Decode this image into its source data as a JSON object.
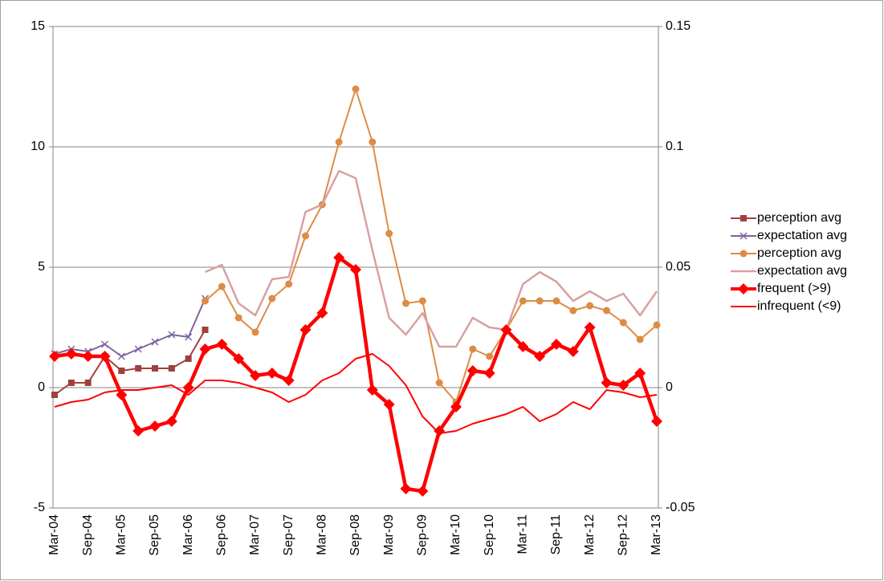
{
  "chart_data": {
    "type": "line",
    "categories": [
      "Mar-04",
      null,
      "Sep-04",
      null,
      "Mar-05",
      null,
      "Sep-05",
      null,
      "Mar-06",
      null,
      "Sep-06",
      null,
      "Mar-07",
      null,
      "Sep-07",
      null,
      "Mar-08",
      null,
      "Sep-08",
      null,
      "Mar-09",
      null,
      "Sep-09",
      null,
      "Mar-10",
      null,
      "Sep-10",
      null,
      "Mar-11",
      null,
      "Sep-11",
      null,
      "Mar-12",
      null,
      "Sep-12",
      null,
      "Mar-13"
    ],
    "ylim": [
      -5,
      15
    ],
    "yticks": [
      15,
      10,
      5,
      0,
      -5
    ],
    "y2lim": [
      -0.05,
      0.15
    ],
    "y2ticks": [
      0.15,
      0.1,
      0.05,
      0,
      -0.05
    ],
    "grid": true,
    "legend": "right",
    "series": [
      {
        "name": "perception avg",
        "color": "#9e413e",
        "marker": "square",
        "line_width": 2,
        "values": [
          -0.3,
          0.2,
          0.2,
          1.3,
          0.7,
          0.8,
          0.8,
          0.8,
          1.2,
          2.4,
          null,
          null,
          null,
          null,
          null,
          null,
          null,
          null,
          null,
          null,
          null,
          null,
          null,
          null,
          null,
          null,
          null,
          null,
          null,
          null,
          null,
          null,
          null,
          null,
          null,
          null,
          null
        ]
      },
      {
        "name": "expectation avg",
        "color": "#7e649e",
        "marker": "x",
        "line_width": 2,
        "values": [
          1.4,
          1.6,
          1.5,
          1.8,
          1.3,
          1.6,
          1.9,
          2.2,
          2.1,
          3.7,
          null,
          null,
          null,
          null,
          null,
          null,
          null,
          null,
          null,
          null,
          null,
          null,
          null,
          null,
          null,
          null,
          null,
          null,
          null,
          null,
          null,
          null,
          null,
          null,
          null,
          null,
          null
        ]
      },
      {
        "name": "perception avg",
        "color": "#dd8c45",
        "marker": "circle",
        "line_width": 2,
        "values": [
          null,
          null,
          null,
          null,
          null,
          null,
          null,
          null,
          null,
          3.6,
          4.2,
          2.9,
          2.3,
          3.7,
          4.3,
          6.3,
          7.6,
          10.2,
          12.4,
          10.2,
          6.4,
          3.5,
          3.6,
          0.2,
          -0.6,
          1.6,
          1.3,
          2.4,
          3.6,
          3.6,
          3.6,
          3.2,
          3.4,
          3.2,
          2.7,
          2.0,
          2.6
        ]
      },
      {
        "name": "expectation avg",
        "color": "#d9a0a0",
        "marker": "none",
        "line_width": 2.5,
        "values": [
          null,
          null,
          null,
          null,
          null,
          null,
          null,
          null,
          null,
          4.8,
          5.1,
          3.5,
          3.0,
          4.5,
          4.6,
          7.3,
          7.6,
          9.0,
          8.7,
          5.7,
          2.9,
          2.2,
          3.1,
          1.7,
          1.7,
          2.9,
          2.5,
          2.4,
          4.3,
          4.8,
          4.4,
          3.6,
          4.0,
          3.6,
          3.9,
          3.0,
          4.0
        ]
      },
      {
        "name": "frequent (>9)",
        "color": "#ff0000",
        "marker": "diamond",
        "line_width": 4.5,
        "axis": "y2",
        "values": [
          0.013,
          0.014,
          0.013,
          0.013,
          -0.003,
          -0.018,
          -0.016,
          -0.014,
          0.0,
          0.016,
          0.018,
          0.012,
          0.005,
          0.006,
          0.003,
          0.024,
          0.031,
          0.054,
          0.049,
          -0.001,
          -0.007,
          -0.042,
          -0.043,
          -0.018,
          -0.008,
          0.007,
          0.006,
          0.024,
          0.017,
          0.013,
          0.018,
          0.015,
          0.025,
          0.002,
          0.001,
          0.006,
          -0.014
        ]
      },
      {
        "name": "infrequent (<9)",
        "color": "#ff0000",
        "marker": "none",
        "line_width": 2,
        "axis": "y2",
        "values": [
          -0.008,
          -0.006,
          -0.005,
          -0.002,
          -0.001,
          -0.001,
          0.0,
          0.001,
          -0.003,
          0.003,
          0.003,
          0.002,
          0.0,
          -0.002,
          -0.006,
          -0.003,
          0.003,
          0.006,
          0.012,
          0.014,
          0.009,
          0.001,
          -0.012,
          -0.019,
          -0.018,
          -0.015,
          -0.013,
          -0.011,
          -0.008,
          -0.014,
          -0.011,
          -0.006,
          -0.009,
          -0.001,
          -0.002,
          -0.004,
          -0.003
        ]
      }
    ]
  }
}
